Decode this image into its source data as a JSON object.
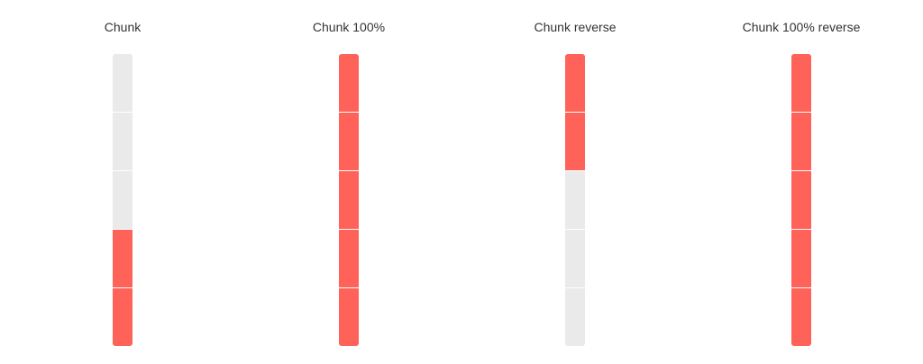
{
  "colors": {
    "filled": "#ff6259",
    "empty": "#eaeaea",
    "label": "#333333"
  },
  "progress_bars": [
    {
      "label": "Chunk",
      "progress_percent": 40,
      "chunks": 5,
      "fill_from": "bottom"
    },
    {
      "label": "Chunk 100%",
      "progress_percent": 100,
      "chunks": 5,
      "fill_from": "bottom"
    },
    {
      "label": "Chunk reverse",
      "progress_percent": 40,
      "chunks": 5,
      "fill_from": "top"
    },
    {
      "label": "Chunk 100% reverse",
      "progress_percent": 100,
      "chunks": 5,
      "fill_from": "top"
    }
  ]
}
